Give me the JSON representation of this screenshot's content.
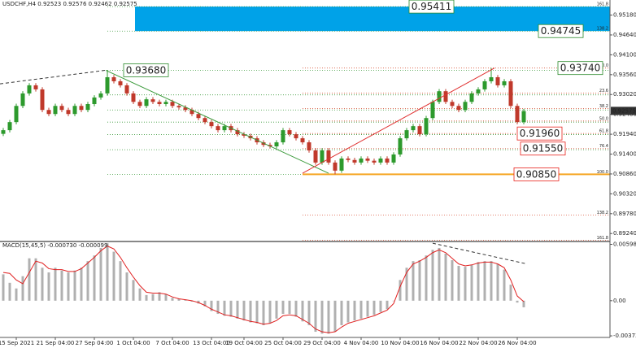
{
  "header": "USDCHF,H4 0.92523 0.92576 0.92462 0.92575",
  "chart_data": [
    {
      "type": "candlestick",
      "up_color": "#2d9a2d",
      "down_color": "#c0392b",
      "xlim": [
        -0.5,
        93.25
      ],
      "xticks": [
        {
          "value": 2,
          "label": "15 Sep 2021"
        },
        {
          "value": 8,
          "label": "21 Sep 04:00"
        },
        {
          "value": 14,
          "label": "27 Sep 04:00"
        },
        {
          "value": 20,
          "label": "1 Oct 04:00"
        },
        {
          "value": 26,
          "label": "7 Oct 04:00"
        },
        {
          "value": 32,
          "label": "13 Oct 04:00"
        },
        {
          "value": 37,
          "label": "19 Oct 04:00"
        },
        {
          "value": 43,
          "label": "25 Oct 04:00"
        },
        {
          "value": 49,
          "label": "29 Oct 04:00"
        },
        {
          "value": 55,
          "label": "4 Nov 04:00"
        },
        {
          "value": 61,
          "label": "10 Nov 04:00"
        },
        {
          "value": 67,
          "label": "16 Nov 04:00"
        },
        {
          "value": 73,
          "label": "22 Nov 04:00"
        },
        {
          "value": 79,
          "label": "26 Nov 04:00"
        }
      ],
      "ylim": [
        0.89046,
        0.9559
      ],
      "yticks": [
        {
          "value": 0.9518,
          "label": "0.95180"
        },
        {
          "value": 0.9464,
          "label": "0.94640"
        },
        {
          "value": 0.941,
          "label": "0.94100"
        },
        {
          "value": 0.9356,
          "label": "0.93560"
        },
        {
          "value": 0.9302,
          "label": "0.93020"
        },
        {
          "value": 0.9248,
          "label": "0.92480"
        },
        {
          "value": 0.9194,
          "label": "0.91940"
        },
        {
          "value": 0.914,
          "label": "0.91400"
        },
        {
          "value": 0.9086,
          "label": "0.90860"
        },
        {
          "value": 0.9032,
          "label": "0.90320"
        },
        {
          "value": 0.8978,
          "label": "0.89780"
        },
        {
          "value": 0.8924,
          "label": "0.89240"
        }
      ],
      "current_price": 0.92575,
      "open": [
        0.9195,
        0.9205,
        0.9227,
        0.9271,
        0.9305,
        0.9327,
        0.9316,
        0.926,
        0.9249,
        0.9271,
        0.926,
        0.9249,
        0.9271,
        0.926,
        0.9276,
        0.9294,
        0.9305,
        0.9349,
        0.9338,
        0.9327,
        0.9305,
        0.9282,
        0.9271,
        0.9289,
        0.9282,
        0.9276,
        0.9282,
        0.9271,
        0.9267,
        0.926,
        0.9249,
        0.9238,
        0.9227,
        0.9216,
        0.9205,
        0.9216,
        0.9205,
        0.9194,
        0.919,
        0.9183,
        0.9172,
        0.9165,
        0.9161,
        0.9172,
        0.9205,
        0.9194,
        0.9183,
        0.9172,
        0.915,
        0.9117,
        0.915,
        0.9117,
        0.9095,
        0.9128,
        0.9124,
        0.9117,
        0.9128,
        0.9122,
        0.9117,
        0.9128,
        0.9117,
        0.9139,
        0.9183,
        0.9205,
        0.9216,
        0.9194,
        0.9238,
        0.9282,
        0.9311,
        0.9282,
        0.9271,
        0.926,
        0.9282,
        0.9305,
        0.9316,
        0.9338,
        0.9349,
        0.9327,
        0.9338,
        0.9271,
        0.9227
      ],
      "high": [
        0.9211,
        0.9233,
        0.9277,
        0.9311,
        0.9333,
        0.9333,
        0.9322,
        0.9266,
        0.9277,
        0.9277,
        0.9266,
        0.9277,
        0.9277,
        0.9282,
        0.93,
        0.9311,
        0.9368,
        0.9355,
        0.9344,
        0.9333,
        0.9311,
        0.9288,
        0.9295,
        0.9295,
        0.9288,
        0.9288,
        0.9288,
        0.9277,
        0.9273,
        0.9266,
        0.9255,
        0.9244,
        0.9233,
        0.9222,
        0.9222,
        0.9222,
        0.9211,
        0.92,
        0.9196,
        0.9189,
        0.9178,
        0.9171,
        0.9178,
        0.9211,
        0.9211,
        0.92,
        0.9189,
        0.9178,
        0.9156,
        0.9156,
        0.9156,
        0.9123,
        0.9134,
        0.9134,
        0.913,
        0.9134,
        0.9134,
        0.9128,
        0.9134,
        0.9134,
        0.9145,
        0.9189,
        0.9211,
        0.9222,
        0.9222,
        0.9244,
        0.9288,
        0.9317,
        0.9317,
        0.9288,
        0.9277,
        0.9288,
        0.9311,
        0.9322,
        0.9344,
        0.9374,
        0.9355,
        0.9344,
        0.9344,
        0.9277,
        0.9263
      ],
      "low": [
        0.9189,
        0.9199,
        0.9221,
        0.9265,
        0.9299,
        0.931,
        0.9254,
        0.9243,
        0.9243,
        0.9254,
        0.9243,
        0.9243,
        0.9254,
        0.9254,
        0.927,
        0.9288,
        0.9299,
        0.9332,
        0.9321,
        0.9299,
        0.9276,
        0.9265,
        0.9265,
        0.9276,
        0.927,
        0.927,
        0.9265,
        0.9261,
        0.9254,
        0.9243,
        0.9232,
        0.9221,
        0.921,
        0.9199,
        0.9199,
        0.9199,
        0.9188,
        0.9184,
        0.9177,
        0.9166,
        0.9159,
        0.9155,
        0.9155,
        0.9166,
        0.9188,
        0.9177,
        0.9166,
        0.9144,
        0.9111,
        0.9111,
        0.9111,
        0.9085,
        0.9089,
        0.9118,
        0.9111,
        0.9111,
        0.9116,
        0.9111,
        0.9111,
        0.9111,
        0.9111,
        0.9133,
        0.9177,
        0.9199,
        0.9188,
        0.9188,
        0.9232,
        0.9276,
        0.9276,
        0.9265,
        0.9254,
        0.9254,
        0.9276,
        0.9299,
        0.931,
        0.9332,
        0.9321,
        0.9321,
        0.9265,
        0.9221,
        0.9221
      ],
      "close": [
        0.9205,
        0.9227,
        0.9271,
        0.9305,
        0.9327,
        0.9316,
        0.926,
        0.9249,
        0.9271,
        0.926,
        0.9249,
        0.9271,
        0.926,
        0.9276,
        0.9294,
        0.9305,
        0.9349,
        0.9338,
        0.9327,
        0.9305,
        0.9282,
        0.9271,
        0.9289,
        0.9282,
        0.9276,
        0.9282,
        0.9271,
        0.9267,
        0.926,
        0.9249,
        0.9238,
        0.9227,
        0.9216,
        0.9205,
        0.9216,
        0.9205,
        0.9194,
        0.919,
        0.9183,
        0.9172,
        0.9165,
        0.9161,
        0.9172,
        0.9205,
        0.9194,
        0.9183,
        0.9172,
        0.915,
        0.9117,
        0.915,
        0.9117,
        0.9095,
        0.9128,
        0.9124,
        0.9117,
        0.9128,
        0.9122,
        0.9117,
        0.9128,
        0.9117,
        0.9139,
        0.9183,
        0.9205,
        0.9216,
        0.9194,
        0.9238,
        0.9282,
        0.9311,
        0.9282,
        0.9271,
        0.926,
        0.9282,
        0.9305,
        0.9316,
        0.9338,
        0.9349,
        0.9327,
        0.9338,
        0.9271,
        0.9227,
        0.9257
      ],
      "zone_color": "#00a2e8",
      "annotations": [
        {
          "label": "0.95411",
          "value": 0.95411,
          "color": "#2a8a2a"
        },
        {
          "label": "0.94745",
          "value": 0.94745,
          "color": "#2a8a2a"
        },
        {
          "label": "0.93680",
          "value": 0.9368,
          "color": "#2a8a2a"
        },
        {
          "label": "0.93740",
          "value": 0.9374,
          "color": "#2a8a2a"
        },
        {
          "label": "0.91960",
          "value": 0.9196,
          "color": "#e8201a"
        },
        {
          "label": "0.91550",
          "value": 0.9155,
          "color": "#e8201a"
        },
        {
          "label": "0.90850",
          "value": 0.9085,
          "color": "#e8201a"
        }
      ],
      "fib_sets": [
        {
          "color": "#3a9a3a",
          "x_from": 16,
          "levels": [
            {
              "value": 0.95411,
              "label": "161.8"
            },
            {
              "value": 0.94745,
              "label": "138.2"
            },
            0.9368,
            0.9301,
            0.926,
            0.9227,
            0.9193,
            0.9152,
            0.9085
          ]
        },
        {
          "color": "#d9553a",
          "x_from": 46,
          "levels": [
            {
              "value": 0.9374,
              "label": "0.0"
            },
            {
              "value": 0.9306,
              "label": "23.6"
            },
            {
              "value": 0.9264,
              "label": "38.2"
            },
            {
              "value": 0.923,
              "label": "50.0"
            },
            {
              "value": 0.9196,
              "label": "61.8"
            },
            {
              "value": 0.9155,
              "label": "76.4"
            },
            {
              "value": 0.9085,
              "label": "100.0"
            },
            {
              "value": 0.8974,
              "label": "138.2"
            },
            {
              "value": 0.8906,
              "label": "161.8"
            }
          ]
        }
      ],
      "trendlines": [
        {
          "x": [
            -0.5,
            15.75
          ],
          "values": [
            0.9331,
            0.9368
          ],
          "color": "#333333",
          "dash": true
        },
        {
          "x": [
            15.75,
            50
          ],
          "values": [
            0.9368,
            0.9088
          ],
          "color": "#3a9a3a",
          "dash": false
        },
        {
          "x": [
            46,
            75.5
          ],
          "values": [
            0.9088,
            0.9374
          ],
          "color": "#e03030",
          "dash": false
        }
      ]
    },
    {
      "type": "macd",
      "title": "MACD(15,45,5) -0.000730 -0.000099",
      "ylim": [
        -0.0039,
        0.0062
      ],
      "yticks": [
        {
          "value": 0.005985,
          "label": "0.005985"
        },
        {
          "value": 0,
          "label": "0.00"
        },
        {
          "value": -0.003732,
          "label": "-0.003732"
        }
      ],
      "hist_color": "#b0b0b0",
      "signal_color": "#e02020",
      "values": [
        0.0028,
        0.0019,
        0.0013,
        0.0026,
        0.0045,
        0.0045,
        0.0035,
        0.003,
        0.0035,
        0.0032,
        0.003,
        0.0032,
        0.0035,
        0.0042,
        0.0048,
        0.0056,
        0.0061,
        0.0052,
        0.0042,
        0.003,
        0.0022,
        0.0013,
        0.0006,
        0.0007,
        0.0009,
        0.0007,
        0.0003,
        0.0002,
        0.0001,
        -0.0001,
        -0.0003,
        -0.0006,
        -0.0011,
        -0.0014,
        -0.0016,
        -0.0017,
        -0.0019,
        -0.0021,
        -0.0023,
        -0.0024,
        -0.0026,
        -0.0024,
        -0.0019,
        -0.0014,
        -0.0014,
        -0.0017,
        -0.0022,
        -0.0026,
        -0.0033,
        -0.0035,
        -0.0035,
        -0.0033,
        -0.0026,
        -0.0023,
        -0.0021,
        -0.0019,
        -0.0017,
        -0.0015,
        -0.0012,
        -0.0009,
        0,
        0.0022,
        0.0035,
        0.0042,
        0.0043,
        0.0048,
        0.0054,
        0.0056,
        0.005,
        0.0043,
        0.0037,
        0.0036,
        0.0038,
        0.0041,
        0.0042,
        0.0042,
        0.0039,
        0.0033,
        0.0017,
        -0.0002,
        -0.0007
      ],
      "signal": [
        0.003,
        0.0029,
        0.0022,
        0.0018,
        0.003,
        0.0042,
        0.004,
        0.0034,
        0.0033,
        0.0033,
        0.0031,
        0.0031,
        0.0034,
        0.004,
        0.0046,
        0.0053,
        0.0058,
        0.0055,
        0.0046,
        0.0035,
        0.0025,
        0.0016,
        0.0009,
        0.0008,
        0.0008,
        0.0007,
        0.0004,
        0.0002,
        0.0001,
        0,
        -0.0002,
        -0.0005,
        -0.0009,
        -0.0012,
        -0.0015,
        -0.0016,
        -0.0018,
        -0.002,
        -0.0022,
        -0.0023,
        -0.0025,
        -0.0024,
        -0.0021,
        -0.0016,
        -0.0015,
        -0.0016,
        -0.002,
        -0.0024,
        -0.003,
        -0.0033,
        -0.0034,
        -0.0033,
        -0.0028,
        -0.0024,
        -0.0022,
        -0.002,
        -0.0018,
        -0.0016,
        -0.0013,
        -0.001,
        -0.0003,
        0.0015,
        0.003,
        0.0039,
        0.0042,
        0.0046,
        0.0051,
        0.0054,
        0.0051,
        0.0045,
        0.0039,
        0.0037,
        0.0038,
        0.004,
        0.0041,
        0.0041,
        0.0039,
        0.0035,
        0.0022,
        0.0005,
        -0.0001
      ],
      "trendline": {
        "x": [
          66,
          80.5
        ],
        "values": [
          0.0061,
          0.0039
        ]
      }
    }
  ]
}
